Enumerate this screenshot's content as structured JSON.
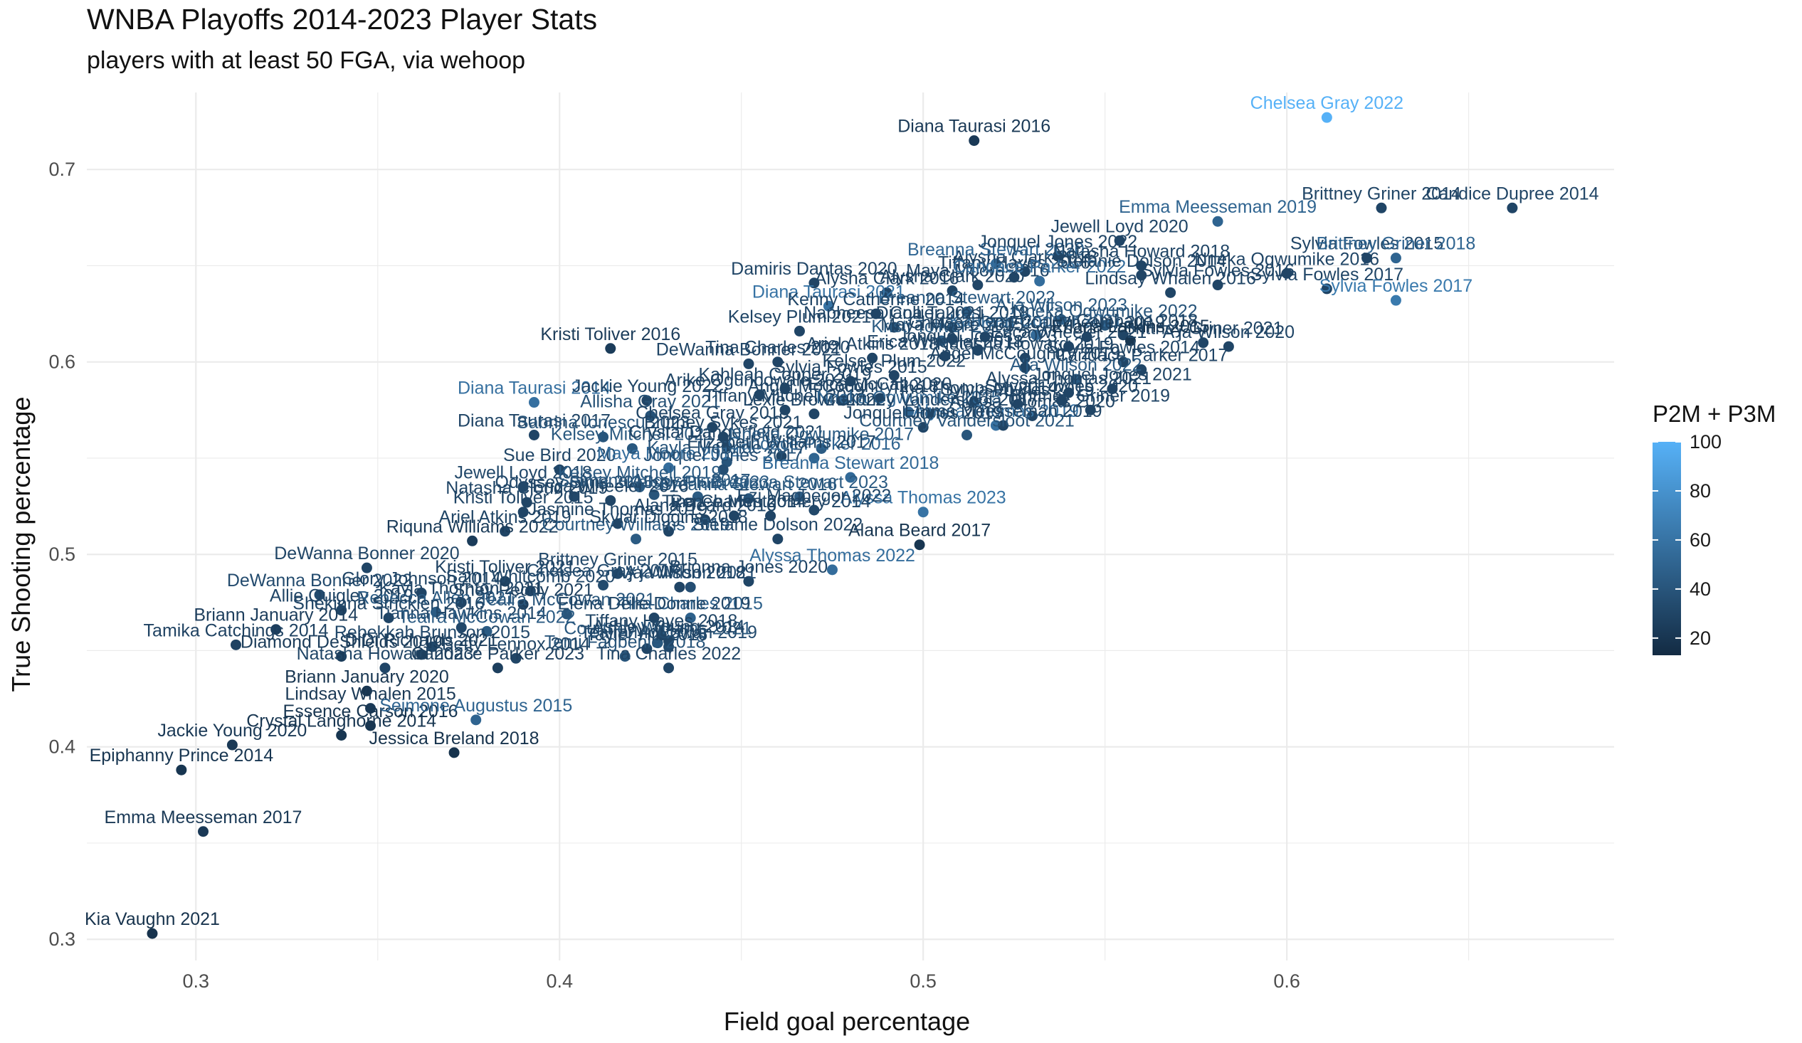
{
  "chart_data": {
    "type": "scatter",
    "title": "WNBA Playoffs 2014-2023 Player Stats",
    "subtitle": "players with at least 50 FGA, via wehoop",
    "xlabel": "Field goal percentage",
    "ylabel": "True Shooting percentage",
    "xlim": [
      0.27,
      0.69
    ],
    "ylim": [
      0.289,
      0.74
    ],
    "x_ticks": [
      0.3,
      0.4,
      0.5,
      0.6
    ],
    "x_tick_labels": [
      "0.3",
      "0.4",
      "0.5",
      "0.6"
    ],
    "y_ticks": [
      0.3,
      0.4,
      0.5,
      0.6,
      0.7
    ],
    "y_tick_labels": [
      "0.3",
      "0.4",
      "0.5",
      "0.6",
      "0.7"
    ],
    "grid": true,
    "color_scale": {
      "title": "P2M + P3M",
      "min": 13,
      "max": 100,
      "low_color": "#132b43",
      "high_color": "#56b1f7",
      "ticks": [
        20,
        40,
        60,
        80,
        100
      ]
    },
    "points": [
      {
        "label": "Kia Vaughn 2021",
        "x": 0.288,
        "y": 0.303,
        "c": 18
      },
      {
        "label": "Emma Meesseman 2017",
        "x": 0.302,
        "y": 0.356,
        "c": 22
      },
      {
        "label": "Epiphanny Prince 2014",
        "x": 0.296,
        "y": 0.388,
        "c": 20
      },
      {
        "label": "Jackie Young 2020",
        "x": 0.31,
        "y": 0.401,
        "c": 22
      },
      {
        "label": "Crystal Langhorne 2014",
        "x": 0.34,
        "y": 0.406,
        "c": 20
      },
      {
        "label": "Essence Carson 2016",
        "x": 0.348,
        "y": 0.411,
        "c": 20
      },
      {
        "label": "Lindsay Whalen 2015",
        "x": 0.348,
        "y": 0.42,
        "c": 22
      },
      {
        "label": "Briann January 2020",
        "x": 0.347,
        "y": 0.429,
        "c": 20
      },
      {
        "label": "Jessica Breland 2018",
        "x": 0.371,
        "y": 0.397,
        "c": 18
      },
      {
        "label": "Seimone Augustus 2015",
        "x": 0.377,
        "y": 0.414,
        "c": 50
      },
      {
        "label": "Tamika Catchings 2014",
        "x": 0.311,
        "y": 0.453,
        "c": 28
      },
      {
        "label": "Briann January 2014",
        "x": 0.322,
        "y": 0.461,
        "c": 25
      },
      {
        "label": "Diamond DeShields 2019",
        "x": 0.34,
        "y": 0.447,
        "c": 24
      },
      {
        "label": "Natasha Howard 2023",
        "x": 0.352,
        "y": 0.441,
        "c": 30
      },
      {
        "label": "Rebekkah Brunson 2015",
        "x": 0.365,
        "y": 0.452,
        "c": 32
      },
      {
        "label": "Candace Parker 2023",
        "x": 0.383,
        "y": 0.441,
        "c": 26
      },
      {
        "label": "Allie Quigley 2019",
        "x": 0.34,
        "y": 0.471,
        "c": 30
      },
      {
        "label": "DeWanna Bonner 2020",
        "x": 0.347,
        "y": 0.493,
        "c": 30
      },
      {
        "label": "DeWanna Bonner 2022",
        "x": 0.334,
        "y": 0.479,
        "c": 34
      },
      {
        "label": "Riquna Williams 2022",
        "x": 0.376,
        "y": 0.507,
        "c": 24
      },
      {
        "label": "Ariel Atkins 2019",
        "x": 0.385,
        "y": 0.512,
        "c": 30
      },
      {
        "label": "Kristi Toliver 2015",
        "x": 0.39,
        "y": 0.522,
        "c": 30
      },
      {
        "label": "Kristi Toliver 2021",
        "x": 0.385,
        "y": 0.486,
        "c": 28
      },
      {
        "label": "Shey Peddy 2021",
        "x": 0.39,
        "y": 0.474,
        "c": 26
      },
      {
        "label": "Sami Whitcomb 2020",
        "x": 0.392,
        "y": 0.481,
        "c": 32
      },
      {
        "label": "Kristi Toliver 2016",
        "x": 0.414,
        "y": 0.607,
        "c": 24
      },
      {
        "label": "Diana Taurasi 2014",
        "x": 0.393,
        "y": 0.579,
        "c": 58
      },
      {
        "label": "Diana Taurasi 2017",
        "x": 0.393,
        "y": 0.562,
        "c": 30
      },
      {
        "label": "Sabrina Ionescu 2023",
        "x": 0.412,
        "y": 0.561,
        "c": 40
      },
      {
        "label": "Jewell Loyd 2018",
        "x": 0.39,
        "y": 0.535,
        "c": 32
      },
      {
        "label": "Natasha Cloud 2019",
        "x": 0.391,
        "y": 0.527,
        "c": 30
      },
      {
        "label": "Odyssey Sims 2015",
        "x": 0.404,
        "y": 0.53,
        "c": 32
      },
      {
        "label": "Sue Bird 2020",
        "x": 0.4,
        "y": 0.544,
        "c": 30
      },
      {
        "label": "Kelsey Mitchell 2021",
        "x": 0.42,
        "y": 0.555,
        "c": 42
      },
      {
        "label": "Jackie Young 2022",
        "x": 0.424,
        "y": 0.58,
        "c": 30
      },
      {
        "label": "Allisha Gray 2021",
        "x": 0.425,
        "y": 0.572,
        "c": 38
      },
      {
        "label": "Courtney Williams 2019",
        "x": 0.421,
        "y": 0.508,
        "c": 44
      },
      {
        "label": "Brittney Griner 2015",
        "x": 0.416,
        "y": 0.49,
        "c": 32
      },
      {
        "label": "A'ja Wilson 2021",
        "x": 0.436,
        "y": 0.483,
        "c": 36
      },
      {
        "label": "A'ja Wilson 2018",
        "x": 0.433,
        "y": 0.483,
        "c": 30
      },
      {
        "label": "Chelsea Gray 2017",
        "x": 0.412,
        "y": 0.484,
        "c": 34
      },
      {
        "label": "Tina Charles 2015",
        "x": 0.436,
        "y": 0.467,
        "c": 48
      },
      {
        "label": "Teaira McCowan 2021",
        "x": 0.402,
        "y": 0.469,
        "c": 40
      },
      {
        "label": "Courtney Williams 2021",
        "x": 0.427,
        "y": 0.454,
        "c": 42
      },
      {
        "label": "Tiffany Hayes 2018",
        "x": 0.428,
        "y": 0.458,
        "c": 30
      },
      {
        "label": "Temi Fagbenle 2018",
        "x": 0.418,
        "y": 0.447,
        "c": 40
      },
      {
        "label": "Tayler Hill 2016",
        "x": 0.424,
        "y": 0.451,
        "c": 30
      },
      {
        "label": "Tina Charles 2022",
        "x": 0.43,
        "y": 0.441,
        "c": 30
      },
      {
        "label": "Teaira McCowan 2019",
        "x": 0.43,
        "y": 0.452,
        "c": 34
      },
      {
        "label": "Brionna Jones 2020",
        "x": 0.452,
        "y": 0.486,
        "c": 30
      },
      {
        "label": "Betty Lennox 2014",
        "x": 0.388,
        "y": 0.446,
        "c": 30
      },
      {
        "label": "Ashley Young 2014",
        "x": 0.43,
        "y": 0.455,
        "c": 30
      },
      {
        "label": "Elena Delle Donne 2019",
        "x": 0.426,
        "y": 0.467,
        "c": 30
      },
      {
        "label": "Rebecca Allen 2021",
        "x": 0.366,
        "y": 0.47,
        "c": 44
      },
      {
        "label": "Tianna Hawkins 2014",
        "x": 0.373,
        "y": 0.462,
        "c": 32
      },
      {
        "label": "Teaira McCowan 2022",
        "x": 0.38,
        "y": 0.46,
        "c": 44
      },
      {
        "label": "DiDi Richards 2021",
        "x": 0.362,
        "y": 0.448,
        "c": 26
      },
      {
        "label": "Kayla Thornton 2021",
        "x": 0.373,
        "y": 0.475,
        "c": 30
      },
      {
        "label": "Shekinna Stricklen 2016",
        "x": 0.353,
        "y": 0.467,
        "c": 30
      },
      {
        "label": "Glory Johnson 2014",
        "x": 0.362,
        "y": 0.48,
        "c": 30
      },
      {
        "label": "Alana Beard 2016",
        "x": 0.44,
        "y": 0.518,
        "c": 30
      },
      {
        "label": "Alana Beard 2017",
        "x": 0.499,
        "y": 0.505,
        "c": 20
      },
      {
        "label": "Alyssa Thomas 2022",
        "x": 0.475,
        "y": 0.492,
        "c": 56
      },
      {
        "label": "Alyssa Thomas 2023",
        "x": 0.5,
        "y": 0.522,
        "c": 60
      },
      {
        "label": "Stefanie Dolson 2022",
        "x": 0.46,
        "y": 0.508,
        "c": 30
      },
      {
        "label": "Skylar Diggins 2018",
        "x": 0.43,
        "y": 0.512,
        "c": 30
      },
      {
        "label": "Breanna Stewart 2016",
        "x": 0.452,
        "y": 0.529,
        "c": 40
      },
      {
        "label": "Breanna Stewart 2023",
        "x": 0.466,
        "y": 0.53,
        "c": 44
      },
      {
        "label": "Ezi Magbegor 2022",
        "x": 0.47,
        "y": 0.523,
        "c": 32
      },
      {
        "label": "Renee Montgomery 2014",
        "x": 0.458,
        "y": 0.52,
        "c": 30
      },
      {
        "label": "Kelsey Plum 2023",
        "x": 0.438,
        "y": 0.53,
        "c": 44
      },
      {
        "label": "Tina Charles 2014",
        "x": 0.448,
        "y": 0.52,
        "c": 30
      },
      {
        "label": "Maya Moore 2014",
        "x": 0.43,
        "y": 0.545,
        "c": 56
      },
      {
        "label": "Erica Wheeler 2016",
        "x": 0.414,
        "y": 0.528,
        "c": 30
      },
      {
        "label": "Jasmine Thomas 2019",
        "x": 0.416,
        "y": 0.516,
        "c": 30
      },
      {
        "label": "Kelsey Mitchell 2019",
        "x": 0.422,
        "y": 0.535,
        "c": 44
      },
      {
        "label": "Seimone Augustus 2017",
        "x": 0.426,
        "y": 0.531,
        "c": 40
      },
      {
        "label": "Kayla McBride 2017",
        "x": 0.446,
        "y": 0.548,
        "c": 40
      },
      {
        "label": "Jonquel Jones 2017",
        "x": 0.445,
        "y": 0.544,
        "c": 36
      },
      {
        "label": "Crystal Dangerfield 2021",
        "x": 0.446,
        "y": 0.556,
        "c": 30
      },
      {
        "label": "Nneka Ogwumike 2017",
        "x": 0.472,
        "y": 0.555,
        "c": 44
      },
      {
        "label": "Candace Parker 2016",
        "x": 0.47,
        "y": 0.55,
        "c": 50
      },
      {
        "label": "Breanna Stewart 2018",
        "x": 0.48,
        "y": 0.54,
        "c": 54
      },
      {
        "label": "Elizabeth Williams 2017",
        "x": 0.461,
        "y": 0.551,
        "c": 30
      },
      {
        "label": "Chelsea Gray 2018",
        "x": 0.442,
        "y": 0.566,
        "c": 30
      },
      {
        "label": "Brittney Sykes 2021",
        "x": 0.445,
        "y": 0.561,
        "c": 30
      },
      {
        "label": "Tiffany Mitchell 2017",
        "x": 0.462,
        "y": 0.575,
        "c": 30
      },
      {
        "label": "Lexie Brown 2022",
        "x": 0.47,
        "y": 0.573,
        "c": 30
      },
      {
        "label": "Arike Ogunbowale 2021",
        "x": 0.455,
        "y": 0.583,
        "c": 30
      },
      {
        "label": "Kahleah Copper 2019",
        "x": 0.462,
        "y": 0.586,
        "c": 30
      },
      {
        "label": "Angel McCoughtry 2018",
        "x": 0.478,
        "y": 0.58,
        "c": 30
      },
      {
        "label": "Nneka Ogwumike 2015",
        "x": 0.496,
        "y": 0.574,
        "c": 50
      },
      {
        "label": "Alyssa Thomas 2019",
        "x": 0.52,
        "y": 0.567,
        "c": 58
      },
      {
        "label": "Courtney Vandersloot 2017",
        "x": 0.502,
        "y": 0.573,
        "c": 30
      },
      {
        "label": "Sylvia Fowles 2019",
        "x": 0.526,
        "y": 0.578,
        "c": 30
      },
      {
        "label": "Sylvia Fowles 2020",
        "x": 0.538,
        "y": 0.58,
        "c": 30
      },
      {
        "label": "Brittney Griner 2019",
        "x": 0.546,
        "y": 0.575,
        "c": 30
      },
      {
        "label": "Tina Thompson 2014",
        "x": 0.514,
        "y": 0.579,
        "c": 30
      },
      {
        "label": "Emma Meesseman 2019",
        "x": 0.522,
        "y": 0.567,
        "c": 30
      },
      {
        "label": "Alyssa Thomas 2020",
        "x": 0.53,
        "y": 0.572,
        "c": 30
      },
      {
        "label": "Courtney Vandersloot 2021",
        "x": 0.512,
        "y": 0.562,
        "c": 40
      },
      {
        "label": "Jonquel Jones 2019",
        "x": 0.5,
        "y": 0.566,
        "c": 30
      },
      {
        "label": "Brittney Griner 2021",
        "x": 0.577,
        "y": 0.61,
        "c": 30
      },
      {
        "label": "A'ja Wilson 2020",
        "x": 0.584,
        "y": 0.608,
        "c": 30
      },
      {
        "label": "A'ja Wilson 2022",
        "x": 0.542,
        "y": 0.591,
        "c": 44
      },
      {
        "label": "Sylvia Fowles 2014",
        "x": 0.555,
        "y": 0.6,
        "c": 30
      },
      {
        "label": "Candace Parker 2017",
        "x": 0.56,
        "y": 0.596,
        "c": 30
      },
      {
        "label": "Jonquel Jones 2021",
        "x": 0.552,
        "y": 0.586,
        "c": 30
      },
      {
        "label": "Natasha Howard 2019",
        "x": 0.528,
        "y": 0.602,
        "c": 30
      },
      {
        "label": "Jonquel Jones 2023",
        "x": 0.515,
        "y": 0.606,
        "c": 30
      },
      {
        "label": "Erica Wheeler 2018",
        "x": 0.506,
        "y": 0.603,
        "c": 30
      },
      {
        "label": "Kelsey Plum 2022",
        "x": 0.492,
        "y": 0.593,
        "c": 30
      },
      {
        "label": "Kristi Toliver 2019",
        "x": 0.505,
        "y": 0.611,
        "c": 44
      },
      {
        "label": "Chelsea Gray 2016",
        "x": 0.517,
        "y": 0.613,
        "c": 30
      },
      {
        "label": "Kahleah Copper 2021",
        "x": 0.531,
        "y": 0.614,
        "c": 54
      },
      {
        "label": "Erica Wheeler 2019",
        "x": 0.545,
        "y": 0.613,
        "c": 30
      },
      {
        "label": "A'ja Wilson 2023",
        "x": 0.538,
        "y": 0.622,
        "c": 44
      },
      {
        "label": "Nneka Ogwumike 2022",
        "x": 0.55,
        "y": 0.619,
        "c": 40
      },
      {
        "label": "Liz Cambage 2018",
        "x": 0.555,
        "y": 0.614,
        "c": 30
      },
      {
        "label": "Erica Wheeler 2021",
        "x": 0.54,
        "y": 0.608,
        "c": 30
      },
      {
        "label": "Angel McCoughtry 2019",
        "x": 0.528,
        "y": 0.597,
        "c": 30
      },
      {
        "label": "Erlana Larkins 2015",
        "x": 0.557,
        "y": 0.611,
        "c": 20
      },
      {
        "label": "Alyssa Thomas 2021",
        "x": 0.54,
        "y": 0.584,
        "c": 30
      },
      {
        "label": "Sylvia Fowles 2015",
        "x": 0.48,
        "y": 0.59,
        "c": 30
      },
      {
        "label": "Erica McCall 2020",
        "x": 0.488,
        "y": 0.581,
        "c": 30
      },
      {
        "label": "Breanna Stewart 2022",
        "x": 0.512,
        "y": 0.626,
        "c": 44
      },
      {
        "label": "Diana Taurasi 2018",
        "x": 0.508,
        "y": 0.618,
        "c": 30
      },
      {
        "label": "Diana Taurasi 2021",
        "x": 0.474,
        "y": 0.629,
        "c": 60
      },
      {
        "label": "Kenny Catherine 2014",
        "x": 0.487,
        "y": 0.625,
        "c": 30
      },
      {
        "label": "Napheesa Collier 2021",
        "x": 0.492,
        "y": 0.618,
        "c": 30
      },
      {
        "label": "Maya Moore 2015",
        "x": 0.508,
        "y": 0.612,
        "c": 30
      },
      {
        "label": "Kelsey Plum 2021",
        "x": 0.466,
        "y": 0.616,
        "c": 30
      },
      {
        "label": "Ariel Atkins 2018",
        "x": 0.486,
        "y": 0.602,
        "c": 30
      },
      {
        "label": "Damiris Dantas 2020",
        "x": 0.47,
        "y": 0.641,
        "c": 30
      },
      {
        "label": "Alysha Clark 2016",
        "x": 0.49,
        "y": 0.636,
        "c": 30
      },
      {
        "label": "Maya Moore 2016",
        "x": 0.515,
        "y": 0.64,
        "c": 30
      },
      {
        "label": "Alysha Clark 2020",
        "x": 0.508,
        "y": 0.637,
        "c": 30
      },
      {
        "label": "DeWanna Bonner 2021",
        "x": 0.452,
        "y": 0.599,
        "c": 30
      },
      {
        "label": "Tina Charles 2020",
        "x": 0.46,
        "y": 0.6,
        "c": 30
      },
      {
        "label": "Alysha Clark 2018",
        "x": 0.528,
        "y": 0.647,
        "c": 30
      },
      {
        "label": "Tiffany Hayes 2016",
        "x": 0.525,
        "y": 0.644,
        "c": 30
      },
      {
        "label": "Breanna Stewart 2020",
        "x": 0.52,
        "y": 0.651,
        "c": 52
      },
      {
        "label": "Candace Parker 2022",
        "x": 0.532,
        "y": 0.642,
        "c": 56
      },
      {
        "label": "Jonquel Jones 2022",
        "x": 0.537,
        "y": 0.655,
        "c": 30
      },
      {
        "label": "Jewell Loyd 2020",
        "x": 0.554,
        "y": 0.663,
        "c": 30
      },
      {
        "label": "Stefanie Dolson 2014",
        "x": 0.56,
        "y": 0.645,
        "c": 30
      },
      {
        "label": "Natasha Howard 2018",
        "x": 0.56,
        "y": 0.65,
        "c": 30
      },
      {
        "label": "Lindsay Whalen 2016",
        "x": 0.568,
        "y": 0.636,
        "c": 30
      },
      {
        "label": "Emma Meesseman 2019",
        "x": 0.581,
        "y": 0.673,
        "c": 50
      },
      {
        "label": "Brittney Griner 2014",
        "x": 0.626,
        "y": 0.68,
        "c": 30
      },
      {
        "label": "Candice Dupree 2014",
        "x": 0.662,
        "y": 0.68,
        "c": 30
      },
      {
        "label": "Sylvia Fowles 2015",
        "x": 0.622,
        "y": 0.654,
        "c": 30
      },
      {
        "label": "Brittney Griner 2018",
        "x": 0.63,
        "y": 0.654,
        "c": 50
      },
      {
        "label": "Nneka Ogwumike 2016",
        "x": 0.6,
        "y": 0.646,
        "c": 30
      },
      {
        "label": "Sylvia Fowles 2016",
        "x": 0.581,
        "y": 0.64,
        "c": 30
      },
      {
        "label": "Sylvia Fowles 2017",
        "x": 0.611,
        "y": 0.638,
        "c": 30
      },
      {
        "label": "Sylvia Fowles 2017",
        "x": 0.63,
        "y": 0.632,
        "c": 64
      },
      {
        "label": "Diana Taurasi 2016",
        "x": 0.514,
        "y": 0.715,
        "c": 22
      },
      {
        "label": "Chelsea Gray 2022",
        "x": 0.611,
        "y": 0.727,
        "c": 100
      }
    ]
  }
}
